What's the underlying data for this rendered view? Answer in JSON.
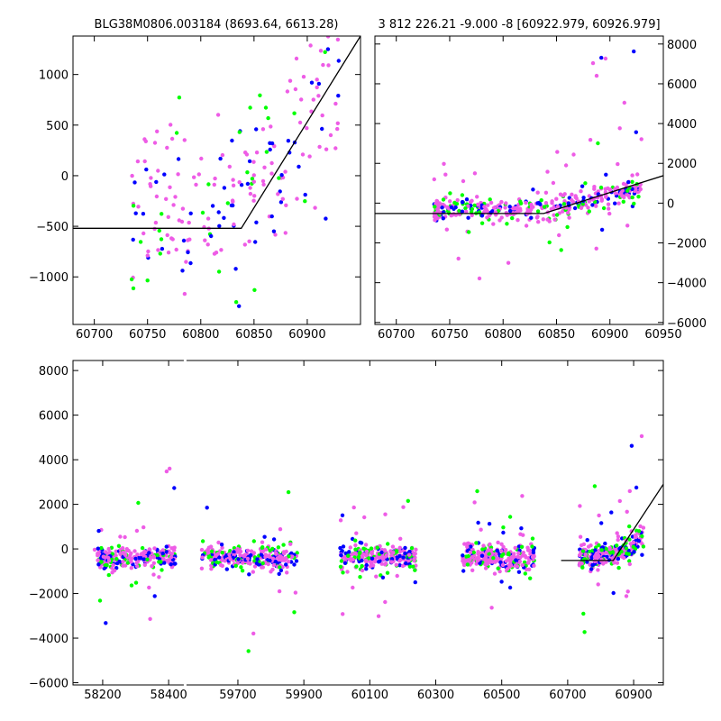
{
  "colors": {
    "series_blue": "#0000ff",
    "series_green": "#00ff00",
    "series_magenta": "#ee5ce6",
    "model": "#000000",
    "axes": "#000000"
  },
  "chart_data": [
    {
      "type": "scatter",
      "panel": "top-left",
      "title": "BLG38M0806.003184 (8693.64, 6613.28)",
      "xlim": [
        60680,
        60950
      ],
      "ylim": [
        -1470,
        1380
      ],
      "xticks": [
        60700,
        60750,
        60800,
        60850,
        60900
      ],
      "yticks": [
        -1000,
        -500,
        0,
        500,
        1000
      ],
      "ytick_side": "left",
      "points_range": [
        60735,
        60930
      ],
      "seed": 11,
      "n": 220,
      "model": [
        [
          60680,
          -520
        ],
        [
          60838,
          -520
        ],
        [
          60950,
          1380
        ]
      ],
      "series": [
        {
          "name": "blue",
          "color": "#0000ff"
        },
        {
          "name": "green",
          "color": "#00ff00"
        },
        {
          "name": "magenta",
          "color": "#ee5ce6"
        }
      ]
    },
    {
      "type": "scatter",
      "panel": "top-right",
      "title": "3 812 226.21 -9.000 -8 [60922.979, 60926.979]",
      "xlim": [
        60680,
        60950
      ],
      "ylim": [
        -6100,
        8400
      ],
      "xticks": [
        60700,
        60750,
        60800,
        60850,
        60900,
        60950
      ],
      "yticks": [
        -6000,
        -4000,
        -2000,
        0,
        2000,
        4000,
        6000,
        8000
      ],
      "ytick_side": "right",
      "points_range": [
        60735,
        60930
      ],
      "seed": 23,
      "n": 420,
      "model": [
        [
          60675,
          -520
        ],
        [
          60838,
          -520
        ],
        [
          60950,
          1380
        ]
      ],
      "series": [
        {
          "name": "blue",
          "color": "#0000ff"
        },
        {
          "name": "green",
          "color": "#00ff00"
        },
        {
          "name": "magenta",
          "color": "#ee5ce6"
        }
      ]
    },
    {
      "type": "scatter",
      "panel": "bottom",
      "title": "",
      "xlim": [
        58110,
        60990
      ],
      "ylim": [
        -6100,
        8450
      ],
      "xticks": [
        58200,
        58400,
        59700,
        59900,
        60100,
        60300,
        60500,
        60700,
        60900
      ],
      "yticks": [
        -6000,
        -4000,
        -2000,
        0,
        2000,
        4000,
        6000,
        8000
      ],
      "ytick_side": "left",
      "axis_break": [
        58450,
        59540
      ],
      "seasons": [
        [
          58175,
          58420
        ],
        [
          59590,
          59880
        ],
        [
          60010,
          60240
        ],
        [
          60380,
          60600
        ],
        [
          60735,
          60930
        ]
      ],
      "seed": 37,
      "n": 1400,
      "model": [
        [
          60680,
          -520
        ],
        [
          60838,
          -520
        ],
        [
          60990,
          2900
        ]
      ],
      "series": [
        {
          "name": "blue",
          "color": "#0000ff"
        },
        {
          "name": "green",
          "color": "#00ff00"
        },
        {
          "name": "magenta",
          "color": "#ee5ce6"
        }
      ]
    }
  ]
}
